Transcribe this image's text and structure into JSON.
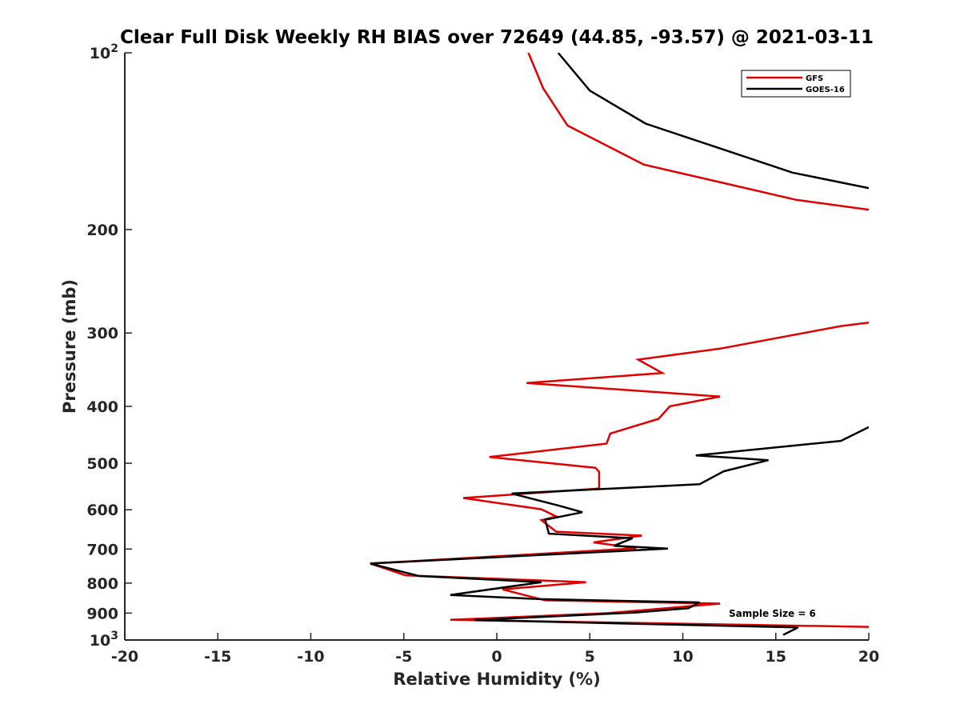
{
  "chart_data": {
    "type": "line",
    "title": "Clear Full Disk Weekly RH BIAS over 72649 (44.85, -93.57) @ 2021-03-11",
    "xlabel": "Relative Humidity (%)",
    "ylabel": "Pressure (mb)",
    "xlim": [
      -20,
      20
    ],
    "ylim": [
      100,
      1000
    ],
    "y_scale": "log",
    "y_reversed": true,
    "x_ticks": [
      "-20",
      "-15",
      "-10",
      "-5",
      "0",
      "5",
      "10",
      "15",
      "20"
    ],
    "y_ticks": [
      {
        "value": 100,
        "base": "10",
        "exp": "2"
      },
      {
        "value": 200,
        "label": "200"
      },
      {
        "value": 300,
        "label": "300"
      },
      {
        "value": 400,
        "label": "400"
      },
      {
        "value": 500,
        "label": "500"
      },
      {
        "value": 600,
        "label": "600"
      },
      {
        "value": 700,
        "label": "700"
      },
      {
        "value": 800,
        "label": "800"
      },
      {
        "value": 900,
        "label": "900"
      },
      {
        "value": 1000,
        "base": "10",
        "exp": "3"
      }
    ],
    "legend_position": "top-right",
    "annotation": "Sample Size = 6",
    "grid": false,
    "series": [
      {
        "name": "GFS",
        "color": "#e00000",
        "points": [
          [
            1.7,
            100
          ],
          [
            2.5,
            115
          ],
          [
            3.8,
            133
          ],
          [
            7.9,
            155
          ],
          [
            16.1,
            178
          ],
          [
            20,
            185
          ],
          [
            null,
            null
          ],
          [
            20,
            288
          ],
          [
            18.5,
            292
          ],
          [
            12,
            319
          ],
          [
            7.6,
            333
          ],
          [
            8.9,
            351
          ],
          [
            1.6,
            365
          ],
          [
            12,
            385
          ],
          [
            9.3,
            400
          ],
          [
            8.7,
            420
          ],
          [
            6.1,
            445
          ],
          [
            5.9,
            463
          ],
          [
            -0.4,
            488
          ],
          [
            5.3,
            509
          ],
          [
            5.5,
            517
          ],
          [
            5.5,
            552
          ],
          [
            -1.8,
            573
          ],
          [
            2.4,
            599
          ],
          [
            3.2,
            616
          ],
          [
            2.4,
            625
          ],
          [
            3.2,
            654
          ],
          [
            7.8,
            664
          ],
          [
            5.2,
            682
          ],
          [
            7.5,
            698
          ],
          [
            -6.8,
            741
          ],
          [
            -4.9,
            776
          ],
          [
            4.8,
            797
          ],
          [
            0.3,
            820
          ],
          [
            2.6,
            856
          ],
          [
            12,
            867
          ],
          [
            6,
            900
          ],
          [
            -2.5,
            924
          ],
          [
            20,
            950
          ]
        ]
      },
      {
        "name": "GOES-16",
        "color": "#000000",
        "points": [
          [
            3.3,
            100
          ],
          [
            5,
            116
          ],
          [
            8,
            132
          ],
          [
            15.9,
            160
          ],
          [
            20,
            170
          ],
          [
            null,
            null
          ],
          [
            20,
            434
          ],
          [
            18.5,
            458
          ],
          [
            10.7,
            485
          ],
          [
            14.6,
            494
          ],
          [
            12.2,
            516
          ],
          [
            10.9,
            543
          ],
          [
            0.8,
            563
          ],
          [
            3.3,
            590
          ],
          [
            4.6,
            606
          ],
          [
            2.6,
            624
          ],
          [
            2.8,
            659
          ],
          [
            7.3,
            671
          ],
          [
            6.3,
            691
          ],
          [
            9.2,
            699
          ],
          [
            -6.8,
            741
          ],
          [
            -4.2,
            778
          ],
          [
            2.4,
            797
          ],
          [
            -2.5,
            838
          ],
          [
            2.3,
            852
          ],
          [
            10.9,
            863
          ],
          [
            10.3,
            883
          ],
          [
            7.4,
            898
          ],
          [
            -1.2,
            925
          ],
          [
            16.2,
            952
          ],
          [
            15.4,
            980
          ]
        ]
      }
    ]
  }
}
